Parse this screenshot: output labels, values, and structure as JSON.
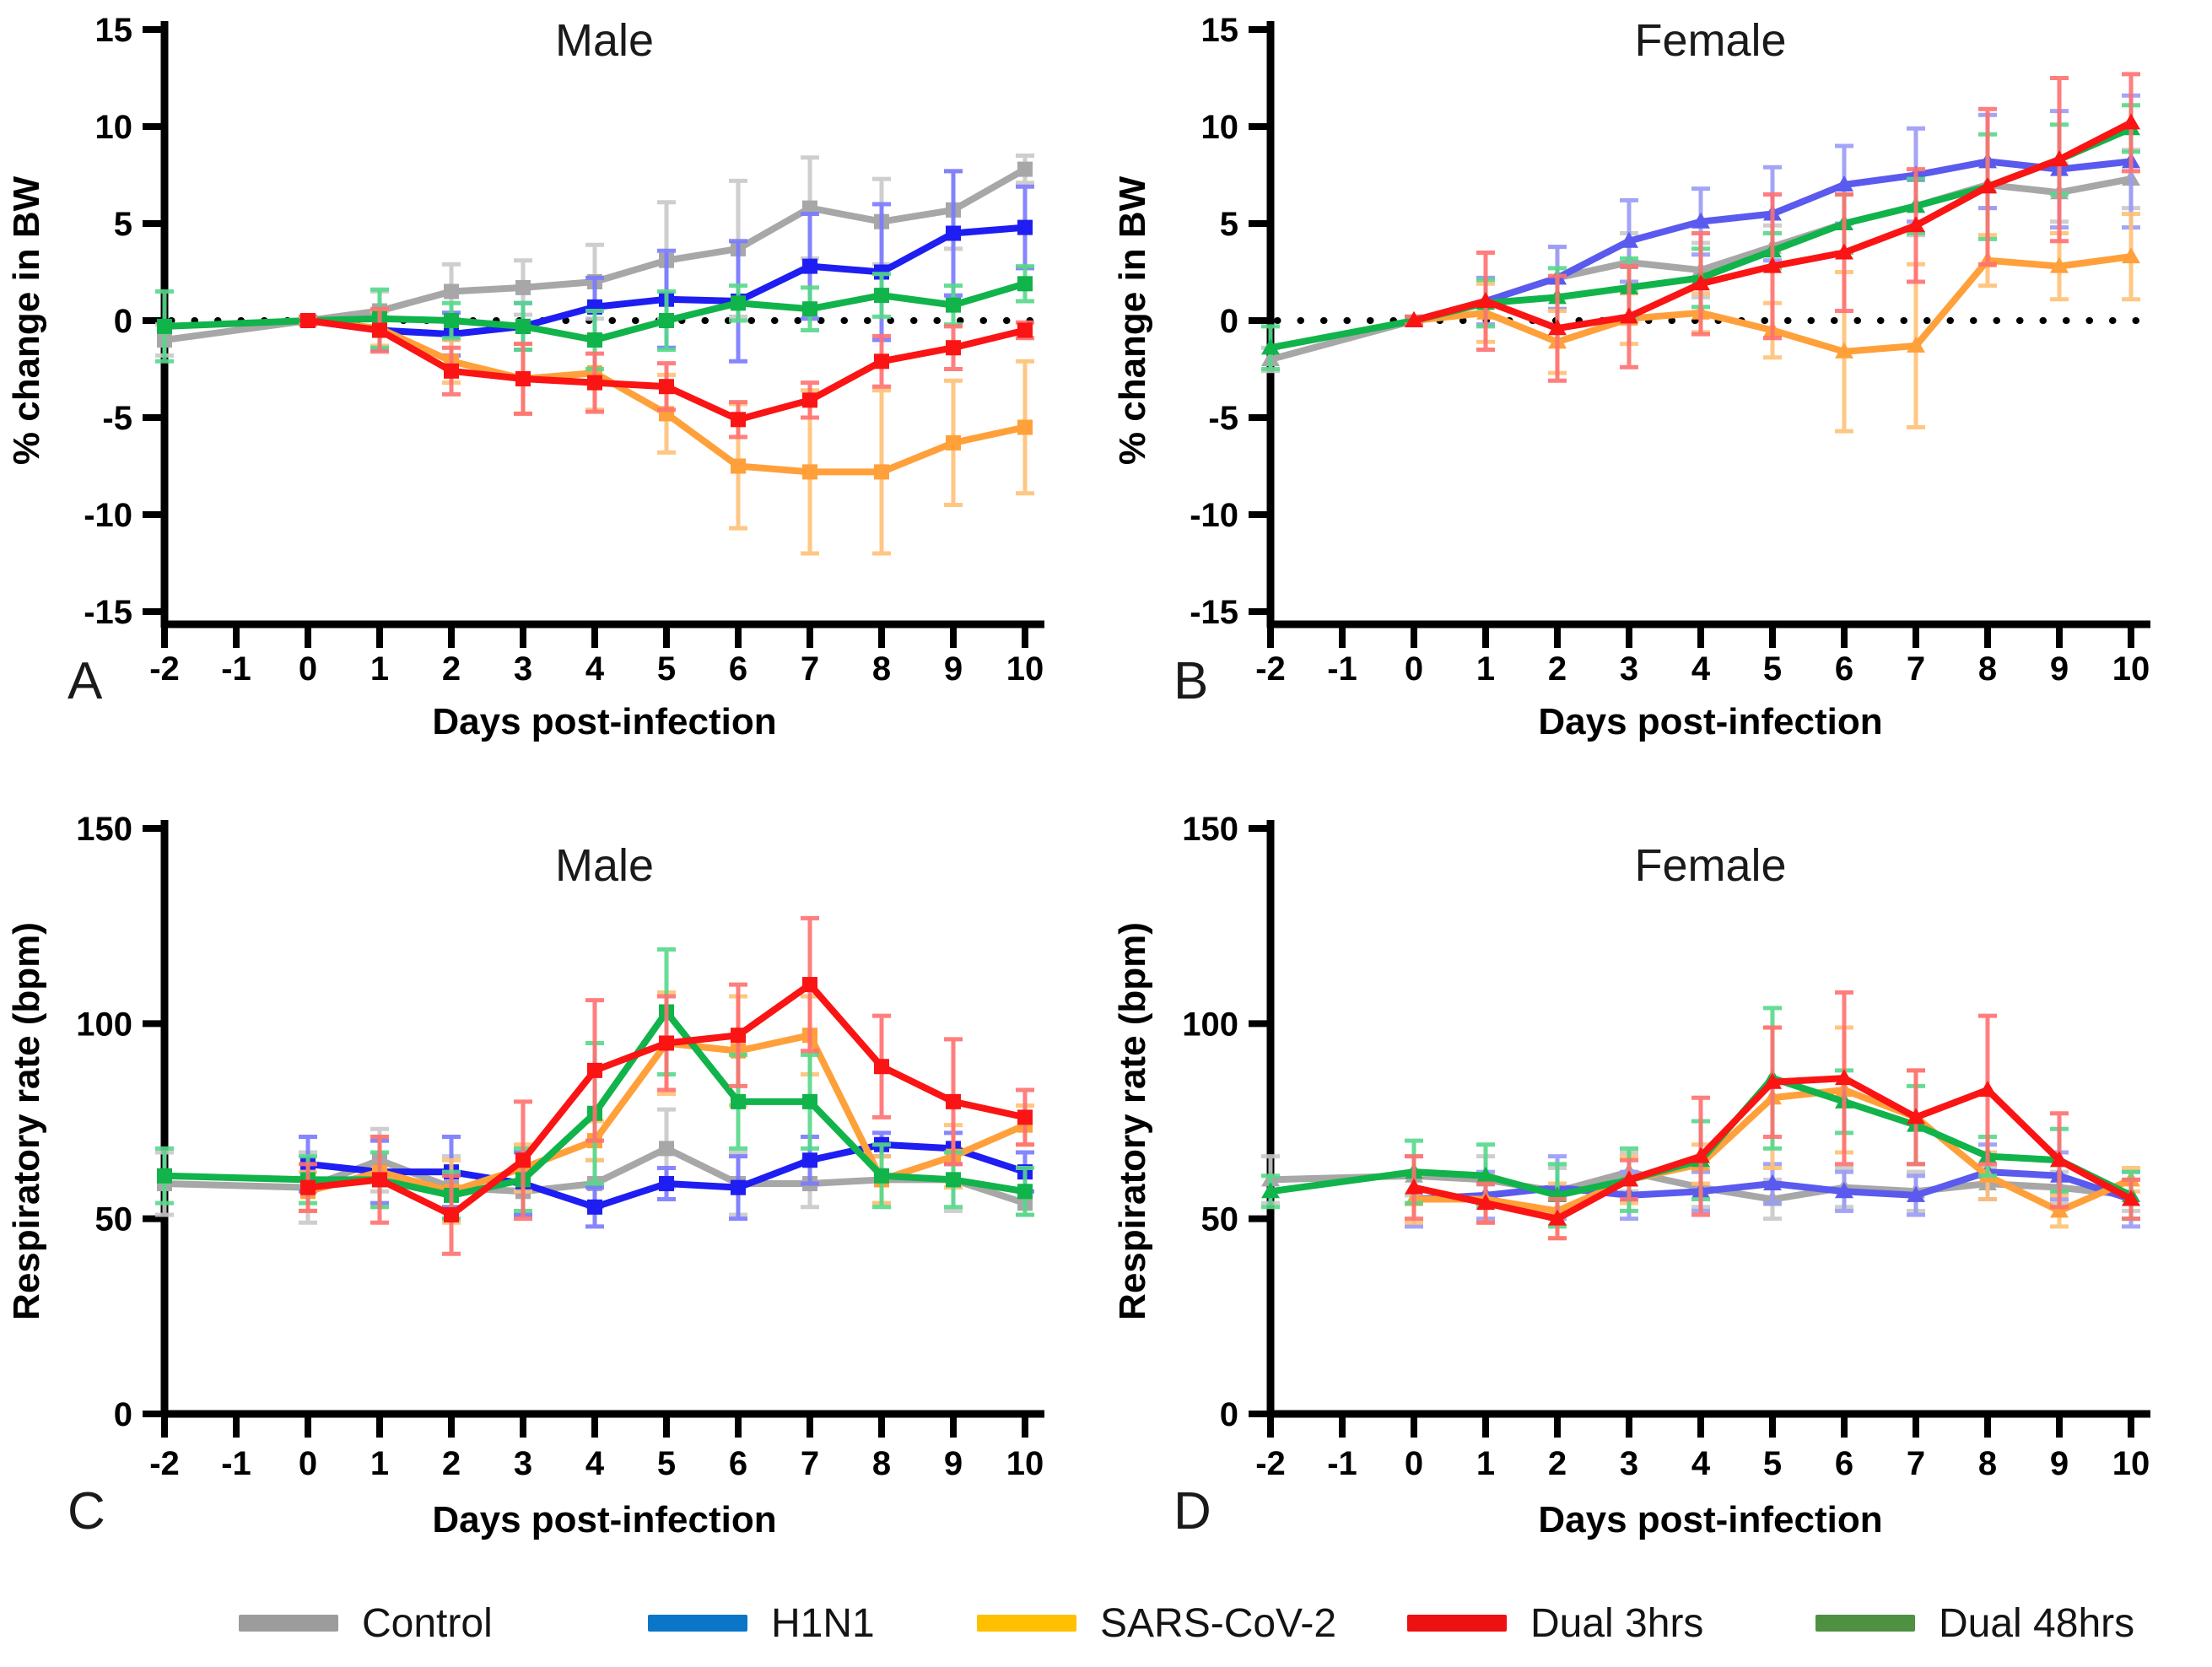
{
  "figure": {
    "legend": {
      "items": [
        {
          "id": "control",
          "label": "Control",
          "color": "#9C9C9C"
        },
        {
          "id": "h1n1",
          "label": "H1N1",
          "color": "#0B76C8"
        },
        {
          "id": "sars",
          "label": "SARS-CoV-2",
          "color": "#FFC000"
        },
        {
          "id": "dual3",
          "label": "Dual 3hrs",
          "color": "#ED1111"
        },
        {
          "id": "dual48",
          "label": "Dual 48hrs",
          "color": "#4E9141"
        }
      ]
    }
  },
  "chart_data": [
    {
      "id": "A",
      "panel_letter": "A",
      "type": "line",
      "title": "Male",
      "xlabel": "Days post-infection",
      "ylabel": "% change in BW",
      "xlim": [
        -2,
        10
      ],
      "ylim": [
        -15,
        15
      ],
      "xticks": [
        -2,
        -1,
        0,
        1,
        2,
        3,
        4,
        5,
        6,
        7,
        8,
        9,
        10
      ],
      "yticks": [
        15,
        10,
        5,
        0,
        -5,
        -10,
        -15
      ],
      "zero_line_dotted": true,
      "marker": "square",
      "grid": false,
      "series": [
        {
          "name": "Control",
          "color": "#A7A7A7",
          "err_color": "#C9C9C9",
          "x": [
            -2,
            0,
            1,
            2,
            3,
            4,
            5,
            6,
            7,
            8,
            9,
            10
          ],
          "y": [
            -1.0,
            0,
            0.5,
            1.5,
            1.7,
            2.0,
            3.1,
            3.7,
            5.8,
            5.1,
            5.7,
            7.8
          ],
          "err": [
            0.8,
            0.2,
            1.0,
            1.4,
            1.4,
            1.9,
            3.0,
            3.5,
            2.6,
            2.2,
            2.0,
            0.7
          ]
        },
        {
          "name": "H1N1",
          "color": "#1E1EF2",
          "err_color": "#7A7AFF",
          "x": [
            0,
            1,
            2,
            3,
            4,
            5,
            6,
            7,
            8,
            9,
            10
          ],
          "y": [
            0,
            -0.5,
            -0.7,
            -0.3,
            0.7,
            1.1,
            1.0,
            2.8,
            2.5,
            4.5,
            4.8
          ],
          "err": [
            0.2,
            1.0,
            1.1,
            1.2,
            1.5,
            2.5,
            3.1,
            2.7,
            3.5,
            3.2,
            2.1
          ]
        },
        {
          "name": "SARS-CoV-2",
          "color": "#FFA03A",
          "err_color": "#FFC177",
          "x": [
            0,
            1,
            2,
            3,
            4,
            5,
            6,
            7,
            8,
            9,
            10
          ],
          "y": [
            0,
            -0.4,
            -2.1,
            -3.0,
            -2.7,
            -4.8,
            -7.5,
            -7.8,
            -7.8,
            -6.3,
            -5.5
          ],
          "err": [
            0.2,
            0.9,
            1.1,
            1.8,
            1.9,
            2.0,
            3.2,
            4.2,
            4.2,
            3.2,
            3.4
          ]
        },
        {
          "name": "Dual 48hrs",
          "color": "#11B34B",
          "err_color": "#56D98A",
          "x": [
            -2,
            0,
            1,
            2,
            3,
            4,
            5,
            6,
            7,
            8,
            9,
            10
          ],
          "y": [
            -0.3,
            0,
            0.1,
            0.0,
            -0.3,
            -1.0,
            0.0,
            0.9,
            0.6,
            1.3,
            0.8,
            1.9
          ],
          "err": [
            1.8,
            0.2,
            1.5,
            0.9,
            1.2,
            1.5,
            1.5,
            0.9,
            1.1,
            1.1,
            1.0,
            0.9
          ]
        },
        {
          "name": "Dual 3hrs",
          "color": "#FA1414",
          "err_color": "#FF7171",
          "x": [
            0,
            1,
            2,
            3,
            4,
            5,
            6,
            7,
            8,
            9,
            10
          ],
          "y": [
            0,
            -0.5,
            -2.6,
            -3.0,
            -3.2,
            -3.4,
            -5.1,
            -4.1,
            -2.1,
            -1.4,
            -0.5
          ],
          "err": [
            0.2,
            1.1,
            1.2,
            1.8,
            1.5,
            1.2,
            0.9,
            0.9,
            1.3,
            1.1,
            0.4
          ]
        }
      ]
    },
    {
      "id": "B",
      "panel_letter": "B",
      "type": "line",
      "title": "Female",
      "xlabel": "Days post-infection",
      "ylabel": "% change in BW",
      "xlim": [
        -2,
        10
      ],
      "ylim": [
        -15,
        15
      ],
      "xticks": [
        -2,
        -1,
        0,
        1,
        2,
        3,
        4,
        5,
        6,
        7,
        8,
        9,
        10
      ],
      "yticks": [
        15,
        10,
        5,
        0,
        -5,
        -10,
        -15
      ],
      "zero_line_dotted": true,
      "marker": "triangle",
      "grid": false,
      "series": [
        {
          "name": "Control",
          "color": "#A7A7A7",
          "err_color": "#C9C9C9",
          "x": [
            -2,
            0,
            1,
            2,
            3,
            4,
            5,
            6,
            7,
            8,
            9,
            10
          ],
          "y": [
            -2.0,
            0,
            1.0,
            2.2,
            3.0,
            2.6,
            3.8,
            5.0,
            5.9,
            7.0,
            6.6,
            7.3
          ],
          "err": [
            0.6,
            0.2,
            1.2,
            1.6,
            1.5,
            1.4,
            1.1,
            1.5,
            1.5,
            1.2,
            1.5,
            1.5
          ]
        },
        {
          "name": "H1N1",
          "color": "#5A5AEE",
          "err_color": "#9B9BF7",
          "x": [
            0,
            1,
            2,
            3,
            4,
            5,
            6,
            7,
            8,
            9,
            10
          ],
          "y": [
            0,
            1.0,
            2.2,
            4.1,
            5.1,
            5.5,
            7.0,
            7.5,
            8.2,
            7.8,
            8.2
          ],
          "err": [
            0.2,
            1.2,
            1.6,
            2.1,
            1.7,
            2.4,
            2.0,
            2.4,
            2.4,
            3.0,
            3.4
          ]
        },
        {
          "name": "SARS-CoV-2",
          "color": "#FFA03A",
          "err_color": "#FFC177",
          "x": [
            0,
            1,
            2,
            3,
            4,
            5,
            6,
            7,
            8,
            9,
            10
          ],
          "y": [
            0,
            0.4,
            -1.1,
            0.1,
            0.4,
            -0.5,
            -1.6,
            -1.3,
            3.1,
            2.8,
            3.3
          ],
          "err": [
            0.2,
            1.5,
            1.6,
            1.3,
            1.0,
            1.4,
            4.1,
            4.2,
            1.3,
            1.7,
            2.2
          ]
        },
        {
          "name": "Dual 48hrs",
          "color": "#11B34B",
          "err_color": "#56D98A",
          "x": [
            -2,
            0,
            1,
            2,
            3,
            4,
            5,
            6,
            7,
            8,
            9,
            10
          ],
          "y": [
            -1.4,
            0,
            0.9,
            1.2,
            1.7,
            2.2,
            3.6,
            5.0,
            5.9,
            6.9,
            8.3,
            9.9
          ],
          "err": [
            1.1,
            0.2,
            1.2,
            1.5,
            1.5,
            1.5,
            0.9,
            1.5,
            1.4,
            2.7,
            1.8,
            1.2
          ]
        },
        {
          "name": "Dual 3hrs",
          "color": "#FA1414",
          "err_color": "#FF7171",
          "x": [
            0,
            1,
            2,
            3,
            4,
            5,
            6,
            7,
            8,
            9,
            10
          ],
          "y": [
            0,
            1.0,
            -0.4,
            0.2,
            1.9,
            2.8,
            3.5,
            4.9,
            6.9,
            8.3,
            10.2
          ],
          "err": [
            0.2,
            2.5,
            2.7,
            2.6,
            2.6,
            3.7,
            3.0,
            2.9,
            4.0,
            4.2,
            2.5
          ]
        }
      ]
    },
    {
      "id": "C",
      "panel_letter": "C",
      "type": "line",
      "title": "Male",
      "xlabel": "Days post-infection",
      "ylabel": "Respiratory rate (bpm)",
      "xlim": [
        -2,
        10
      ],
      "ylim": [
        0,
        150
      ],
      "xticks": [
        -2,
        -1,
        0,
        1,
        2,
        3,
        4,
        5,
        6,
        7,
        8,
        9,
        10
      ],
      "yticks": [
        150,
        100,
        50,
        0
      ],
      "zero_line_dotted": false,
      "marker": "square",
      "grid": false,
      "series": [
        {
          "name": "Control",
          "color": "#A7A7A7",
          "err_color": "#C9C9C9",
          "x": [
            -2,
            0,
            1,
            2,
            3,
            4,
            5,
            6,
            7,
            8,
            9,
            10
          ],
          "y": [
            59,
            58,
            65,
            58,
            57,
            59,
            68,
            59,
            59,
            60,
            60,
            54
          ],
          "err": [
            8,
            9,
            8,
            8,
            6,
            6,
            10,
            8,
            6,
            6,
            8,
            3
          ]
        },
        {
          "name": "H1N1",
          "color": "#1E1EF2",
          "err_color": "#7A7AFF",
          "x": [
            0,
            1,
            2,
            3,
            4,
            5,
            6,
            7,
            8,
            9,
            10
          ],
          "y": [
            64,
            62,
            62,
            59,
            53,
            59,
            58,
            65,
            69,
            68,
            62
          ],
          "err": [
            7,
            8,
            9,
            8,
            5,
            4,
            8,
            6,
            3,
            4,
            5
          ]
        },
        {
          "name": "SARS-CoV-2",
          "color": "#FFA03A",
          "err_color": "#FFC177",
          "x": [
            0,
            1,
            2,
            3,
            4,
            5,
            6,
            7,
            8,
            9,
            10
          ],
          "y": [
            57,
            62,
            57,
            63,
            70,
            95,
            93,
            97,
            60,
            66,
            74
          ],
          "err": [
            5,
            9,
            8,
            6,
            5,
            13,
            14,
            10,
            6,
            8,
            5
          ]
        },
        {
          "name": "Dual 48hrs",
          "color": "#11B34B",
          "err_color": "#56D98A",
          "x": [
            -2,
            0,
            1,
            2,
            3,
            4,
            5,
            6,
            7,
            8,
            9,
            10
          ],
          "y": [
            61,
            60,
            60,
            56,
            60,
            77,
            103,
            80,
            80,
            61,
            60,
            57
          ],
          "err": [
            7,
            6,
            7,
            6,
            8,
            18,
            16,
            12,
            12,
            8,
            7,
            6
          ]
        },
        {
          "name": "Dual 3hrs",
          "color": "#FA1414",
          "err_color": "#FF7171",
          "x": [
            0,
            1,
            2,
            3,
            4,
            5,
            6,
            7,
            8,
            9,
            10
          ],
          "y": [
            58,
            60,
            51,
            65,
            88,
            95,
            97,
            110,
            89,
            80,
            76
          ],
          "err": [
            6,
            11,
            10,
            15,
            18,
            12,
            13,
            17,
            13,
            16,
            7
          ]
        }
      ]
    },
    {
      "id": "D",
      "panel_letter": "D",
      "type": "line",
      "title": "Female",
      "xlabel": "Days post-infection",
      "ylabel": "Respiratory rate (bpm)",
      "xlim": [
        -2,
        10
      ],
      "ylim": [
        0,
        150
      ],
      "xticks": [
        -2,
        -1,
        0,
        1,
        2,
        3,
        4,
        5,
        6,
        7,
        8,
        9,
        10
      ],
      "yticks": [
        150,
        100,
        50,
        0
      ],
      "zero_line_dotted": false,
      "marker": "triangle",
      "grid": false,
      "series": [
        {
          "name": "Control",
          "color": "#A7A7A7",
          "err_color": "#C9C9C9",
          "x": [
            -2,
            0,
            1,
            2,
            3,
            4,
            5,
            6,
            7,
            8,
            9,
            10
          ],
          "y": [
            60,
            61,
            60,
            57,
            62,
            58,
            55,
            58,
            57,
            59,
            58,
            56
          ],
          "err": [
            6,
            5,
            6,
            6,
            5,
            5,
            5,
            5,
            5,
            4,
            4,
            4
          ]
        },
        {
          "name": "H1N1",
          "color": "#5A5AEE",
          "err_color": "#9B9BF7",
          "x": [
            0,
            1,
            2,
            3,
            4,
            5,
            6,
            7,
            8,
            9,
            10
          ],
          "y": [
            55,
            56,
            58,
            56,
            57,
            59,
            57,
            56,
            62,
            61,
            55
          ],
          "err": [
            7,
            6,
            8,
            6,
            5,
            5,
            5,
            5,
            7,
            6,
            7
          ]
        },
        {
          "name": "SARS-CoV-2",
          "color": "#FFA03A",
          "err_color": "#FFC177",
          "x": [
            0,
            1,
            2,
            3,
            4,
            5,
            6,
            7,
            8,
            9,
            10
          ],
          "y": [
            55,
            55,
            52,
            60,
            64,
            81,
            83,
            76,
            61,
            52,
            60
          ],
          "err": [
            6,
            6,
            7,
            6,
            5,
            18,
            16,
            12,
            6,
            4,
            3
          ]
        },
        {
          "name": "Dual 48hrs",
          "color": "#11B34B",
          "err_color": "#56D98A",
          "x": [
            -2,
            0,
            1,
            2,
            3,
            4,
            5,
            6,
            7,
            8,
            9,
            10
          ],
          "y": [
            57,
            62,
            61,
            56,
            60,
            65,
            86,
            80,
            74,
            66,
            65,
            56
          ],
          "err": [
            4,
            8,
            8,
            8,
            8,
            10,
            18,
            8,
            10,
            5,
            8,
            6
          ]
        },
        {
          "name": "Dual 3hrs",
          "color": "#FA1414",
          "err_color": "#FF7171",
          "x": [
            0,
            1,
            2,
            3,
            4,
            5,
            6,
            7,
            8,
            9,
            10
          ],
          "y": [
            58,
            54,
            50,
            60,
            66,
            85,
            86,
            76,
            83,
            65,
            55
          ],
          "err": [
            8,
            5,
            5,
            5,
            15,
            14,
            22,
            12,
            19,
            12,
            5
          ]
        }
      ]
    }
  ]
}
